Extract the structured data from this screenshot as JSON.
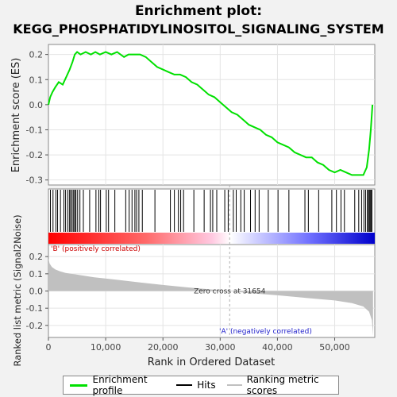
{
  "chart_data": {
    "type": "line",
    "title": "Enrichment plot:",
    "subtitle": "KEGG_PHOSPHATIDYLINOSITOL_SIGNALING_SYSTEM",
    "top_panel": {
      "ylabel": "Enrichment score (ES)",
      "ylim": [
        -0.32,
        0.24
      ],
      "yticks": [
        "-0.3",
        "-0.2",
        "-0.1",
        "0.0",
        "0.1",
        "0.2"
      ],
      "ytick_values": [
        -0.3,
        -0.2,
        -0.1,
        0.0,
        0.1,
        0.2
      ],
      "series": [
        {
          "name": "Enrichment profile",
          "color": "#00e000",
          "x": [
            0,
            300,
            700,
            1200,
            1800,
            2500,
            3100,
            3700,
            4200,
            4600,
            5000,
            5600,
            6500,
            7400,
            8200,
            9000,
            10000,
            11000,
            12000,
            13200,
            14000,
            15000,
            16000,
            17000,
            18000,
            19000,
            20000,
            21000,
            22000,
            23000,
            24000,
            25000,
            26000,
            27000,
            28000,
            29000,
            30000,
            31000,
            32000,
            33000,
            34000,
            35000,
            36000,
            37000,
            38000,
            39000,
            40000,
            41000,
            42000,
            43000,
            44000,
            45000,
            46000,
            47000,
            48000,
            49000,
            50000,
            51000,
            52000,
            53000,
            54000,
            55000,
            55600,
            56000,
            56300,
            56600
          ],
          "y": [
            0.0,
            0.03,
            0.05,
            0.07,
            0.09,
            0.08,
            0.11,
            0.14,
            0.17,
            0.2,
            0.21,
            0.2,
            0.21,
            0.2,
            0.21,
            0.2,
            0.21,
            0.2,
            0.21,
            0.19,
            0.2,
            0.2,
            0.2,
            0.19,
            0.17,
            0.15,
            0.14,
            0.13,
            0.12,
            0.12,
            0.11,
            0.09,
            0.08,
            0.06,
            0.04,
            0.03,
            0.01,
            -0.01,
            -0.03,
            -0.04,
            -0.06,
            -0.08,
            -0.09,
            -0.1,
            -0.12,
            -0.13,
            -0.15,
            -0.16,
            -0.17,
            -0.19,
            -0.2,
            -0.21,
            -0.21,
            -0.23,
            -0.24,
            -0.26,
            -0.27,
            -0.26,
            -0.27,
            -0.28,
            -0.28,
            -0.28,
            -0.25,
            -0.18,
            -0.1,
            0.0
          ]
        }
      ]
    },
    "hits_panel": {
      "hit_positions": [
        350,
        800,
        1300,
        1600,
        2100,
        2700,
        3000,
        3400,
        3700,
        3900,
        4150,
        4400,
        4600,
        4800,
        5100,
        5500,
        6100,
        7200,
        8300,
        8800,
        9100,
        10100,
        10500,
        11600,
        13500,
        14100,
        14600,
        15100,
        15400,
        15800,
        16400,
        18600,
        21300,
        22000,
        22700,
        23100,
        23600,
        25400,
        27200,
        28300,
        28700,
        29400,
        30800,
        31400,
        32300,
        32800,
        33600,
        34200,
        35300,
        36100,
        36800,
        38400,
        40100,
        42000,
        44800,
        45400,
        47200,
        49500,
        50300,
        51100,
        51700,
        53500,
        54200,
        54700,
        55100,
        55400,
        55700,
        55900,
        56050,
        56200,
        56350,
        56500
      ]
    },
    "bottom_panel": {
      "ylabel": "Ranked list metric (Signal2Noise)",
      "xlabel": "Rank in Ordered Dataset",
      "ylim": [
        -0.27,
        0.27
      ],
      "yticks": [
        "-0.2",
        "-0.1",
        "0.0",
        "0.1",
        "0.2"
      ],
      "ytick_values": [
        -0.2,
        -0.1,
        0.0,
        0.1,
        0.2
      ],
      "xlim": [
        0,
        57000
      ],
      "xticks": [
        "0",
        "10,000",
        "20,000",
        "30,000",
        "40,000",
        "50,000"
      ],
      "xtick_values": [
        0,
        10000,
        20000,
        30000,
        40000,
        50000
      ],
      "metric_x": [
        0,
        200,
        600,
        1200,
        2000,
        3000,
        5000,
        8000,
        12000,
        16000,
        20000,
        24000,
        28000,
        31654,
        35000,
        40000,
        45000,
        50000,
        53000,
        55000,
        56000,
        56500,
        56700
      ],
      "metric_y": [
        0.19,
        0.16,
        0.14,
        0.125,
        0.115,
        0.105,
        0.095,
        0.08,
        0.065,
        0.05,
        0.035,
        0.022,
        0.01,
        0.0,
        -0.012,
        -0.025,
        -0.04,
        -0.055,
        -0.07,
        -0.09,
        -0.12,
        -0.17,
        -0.26
      ],
      "zero_cross": 31654,
      "zero_cross_label": "Zero cross at 31654",
      "positive_label": "'B' (positively correlated)",
      "negative_label": "'A' (negatively correlated)"
    },
    "legend": [
      {
        "name": "Enrichment profile",
        "color": "#00e000"
      },
      {
        "name": "Hits",
        "color": "#000000"
      },
      {
        "name": "Ranking metric scores",
        "color": "#c0c0c0"
      }
    ],
    "colors": {
      "positive": "#ff0000",
      "negative": "#0000cc",
      "zero_line": "#b0b0b0",
      "metric_fill": "#c0c0c0"
    }
  }
}
